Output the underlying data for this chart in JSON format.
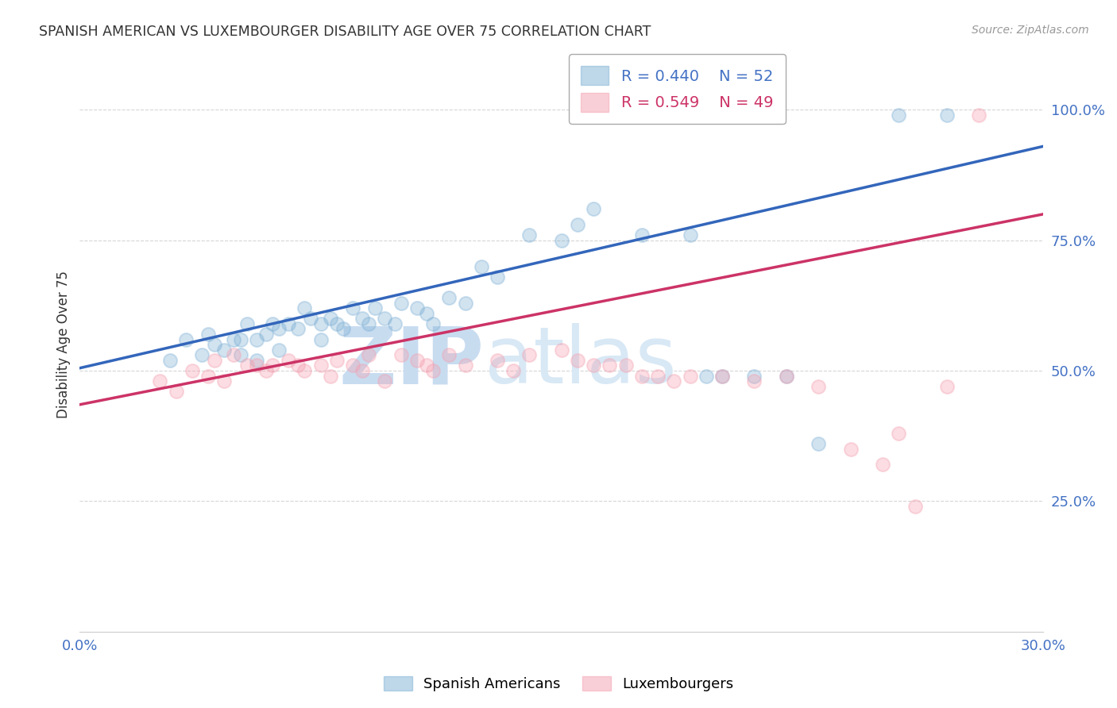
{
  "title": "SPANISH AMERICAN VS LUXEMBOURGER DISABILITY AGE OVER 75 CORRELATION CHART",
  "source": "Source: ZipAtlas.com",
  "ylabel": "Disability Age Over 75",
  "xlim": [
    0.0,
    0.3
  ],
  "ylim": [
    0.0,
    1.1
  ],
  "yticks": [
    0.25,
    0.5,
    0.75,
    1.0
  ],
  "ytick_labels": [
    "25.0%",
    "50.0%",
    "75.0%",
    "100.0%"
  ],
  "xticks": [
    0.0,
    0.05,
    0.1,
    0.15,
    0.2,
    0.25,
    0.3
  ],
  "xtick_labels": [
    "0.0%",
    "",
    "",
    "",
    "",
    "",
    "30.0%"
  ],
  "blue_color": "#7EB0D5",
  "pink_color": "#F4A0B0",
  "legend_blue_R": "R = 0.440",
  "legend_blue_N": "N = 52",
  "legend_pink_R": "R = 0.549",
  "legend_pink_N": "N = 49",
  "watermark_zip": "ZIP",
  "watermark_atlas": "atlas",
  "blue_scatter_x": [
    0.028,
    0.033,
    0.038,
    0.04,
    0.042,
    0.045,
    0.048,
    0.05,
    0.05,
    0.052,
    0.055,
    0.055,
    0.058,
    0.06,
    0.062,
    0.062,
    0.065,
    0.068,
    0.07,
    0.072,
    0.075,
    0.075,
    0.078,
    0.08,
    0.082,
    0.085,
    0.088,
    0.09,
    0.092,
    0.095,
    0.098,
    0.1,
    0.105,
    0.108,
    0.11,
    0.115,
    0.12,
    0.125,
    0.13,
    0.14,
    0.15,
    0.155,
    0.16,
    0.175,
    0.19,
    0.195,
    0.2,
    0.21,
    0.22,
    0.23,
    0.255,
    0.27
  ],
  "blue_scatter_y": [
    0.52,
    0.56,
    0.53,
    0.57,
    0.55,
    0.54,
    0.56,
    0.56,
    0.53,
    0.59,
    0.56,
    0.52,
    0.57,
    0.59,
    0.58,
    0.54,
    0.59,
    0.58,
    0.62,
    0.6,
    0.59,
    0.56,
    0.6,
    0.59,
    0.58,
    0.62,
    0.6,
    0.59,
    0.62,
    0.6,
    0.59,
    0.63,
    0.62,
    0.61,
    0.59,
    0.64,
    0.63,
    0.7,
    0.68,
    0.76,
    0.75,
    0.78,
    0.81,
    0.76,
    0.76,
    0.49,
    0.49,
    0.49,
    0.49,
    0.36,
    0.99,
    0.99
  ],
  "pink_scatter_x": [
    0.025,
    0.03,
    0.035,
    0.04,
    0.042,
    0.045,
    0.048,
    0.052,
    0.055,
    0.058,
    0.06,
    0.065,
    0.068,
    0.07,
    0.075,
    0.078,
    0.08,
    0.085,
    0.088,
    0.09,
    0.095,
    0.1,
    0.105,
    0.108,
    0.11,
    0.115,
    0.12,
    0.13,
    0.135,
    0.14,
    0.15,
    0.155,
    0.16,
    0.165,
    0.17,
    0.175,
    0.18,
    0.185,
    0.19,
    0.2,
    0.21,
    0.22,
    0.23,
    0.24,
    0.25,
    0.255,
    0.26,
    0.27,
    0.28
  ],
  "pink_scatter_y": [
    0.48,
    0.46,
    0.5,
    0.49,
    0.52,
    0.48,
    0.53,
    0.51,
    0.51,
    0.5,
    0.51,
    0.52,
    0.51,
    0.5,
    0.51,
    0.49,
    0.52,
    0.51,
    0.5,
    0.53,
    0.48,
    0.53,
    0.52,
    0.51,
    0.5,
    0.53,
    0.51,
    0.52,
    0.5,
    0.53,
    0.54,
    0.52,
    0.51,
    0.51,
    0.51,
    0.49,
    0.49,
    0.48,
    0.49,
    0.49,
    0.48,
    0.49,
    0.47,
    0.35,
    0.32,
    0.38,
    0.24,
    0.47,
    0.99
  ],
  "blue_line_x": [
    0.0,
    0.3
  ],
  "blue_line_y": [
    0.505,
    0.93
  ],
  "pink_line_x": [
    0.0,
    0.3
  ],
  "pink_line_y": [
    0.435,
    0.8
  ],
  "grid_color": "#CCCCCC",
  "title_color": "#333333",
  "axis_tick_color": "#4472C4",
  "watermark_color_zip": "#C8DCF0",
  "watermark_color_atlas": "#D8E8F5",
  "background_color": "#FFFFFF"
}
